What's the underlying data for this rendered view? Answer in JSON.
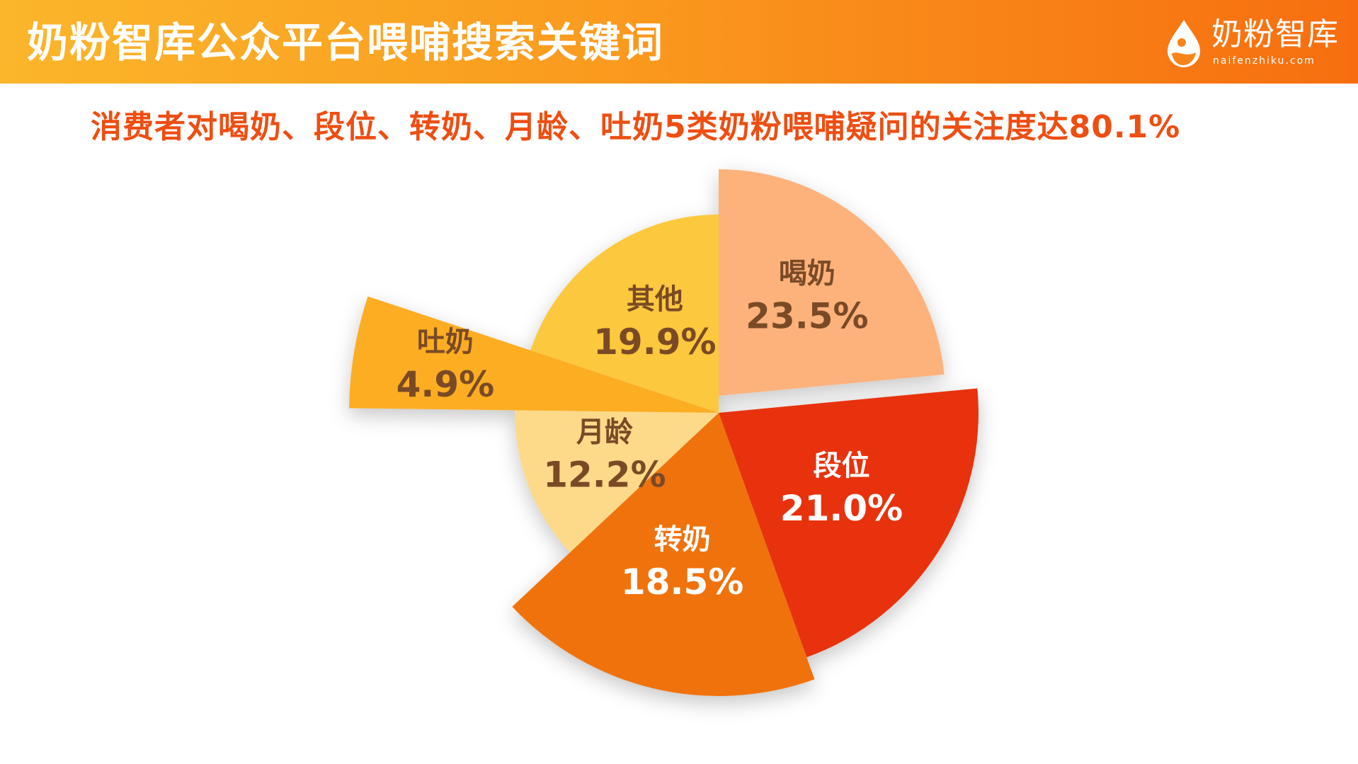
{
  "header": {
    "title": "奶粉智库公众平台喂哺搜索关键词",
    "brand_name": "奶粉智库",
    "brand_url": "naifenzhiku.com"
  },
  "subtitle": "消费者对喝奶、段位、转奶、月龄、吐奶5类奶粉喂哺疑问的关注度达80.1%",
  "chart_data": {
    "type": "pie",
    "start": "12 o'clock",
    "direction": "clockwise",
    "slices": [
      {
        "label": "喝奶",
        "value": 23.5,
        "display": "23.5%",
        "color": "#fdb27c",
        "label_color": "#7a4a26"
      },
      {
        "label": "段位",
        "value": 21.0,
        "display": "21.0%",
        "color": "#e8310e",
        "label_color": "#ffffff"
      },
      {
        "label": "转奶",
        "value": 18.5,
        "display": "18.5%",
        "color": "#f07210",
        "label_color": "#ffffff"
      },
      {
        "label": "月龄",
        "value": 12.2,
        "display": "12.2%",
        "color": "#fdda8a",
        "label_color": "#7a4a26"
      },
      {
        "label": "吐奶",
        "value": 4.9,
        "display": "4.9%",
        "color": "#fcad24",
        "label_color": "#7a4a26"
      },
      {
        "label": "其他",
        "value": 19.9,
        "display": "19.9%",
        "color": "#fcc83c",
        "label_color": "#7a4a26"
      }
    ]
  }
}
